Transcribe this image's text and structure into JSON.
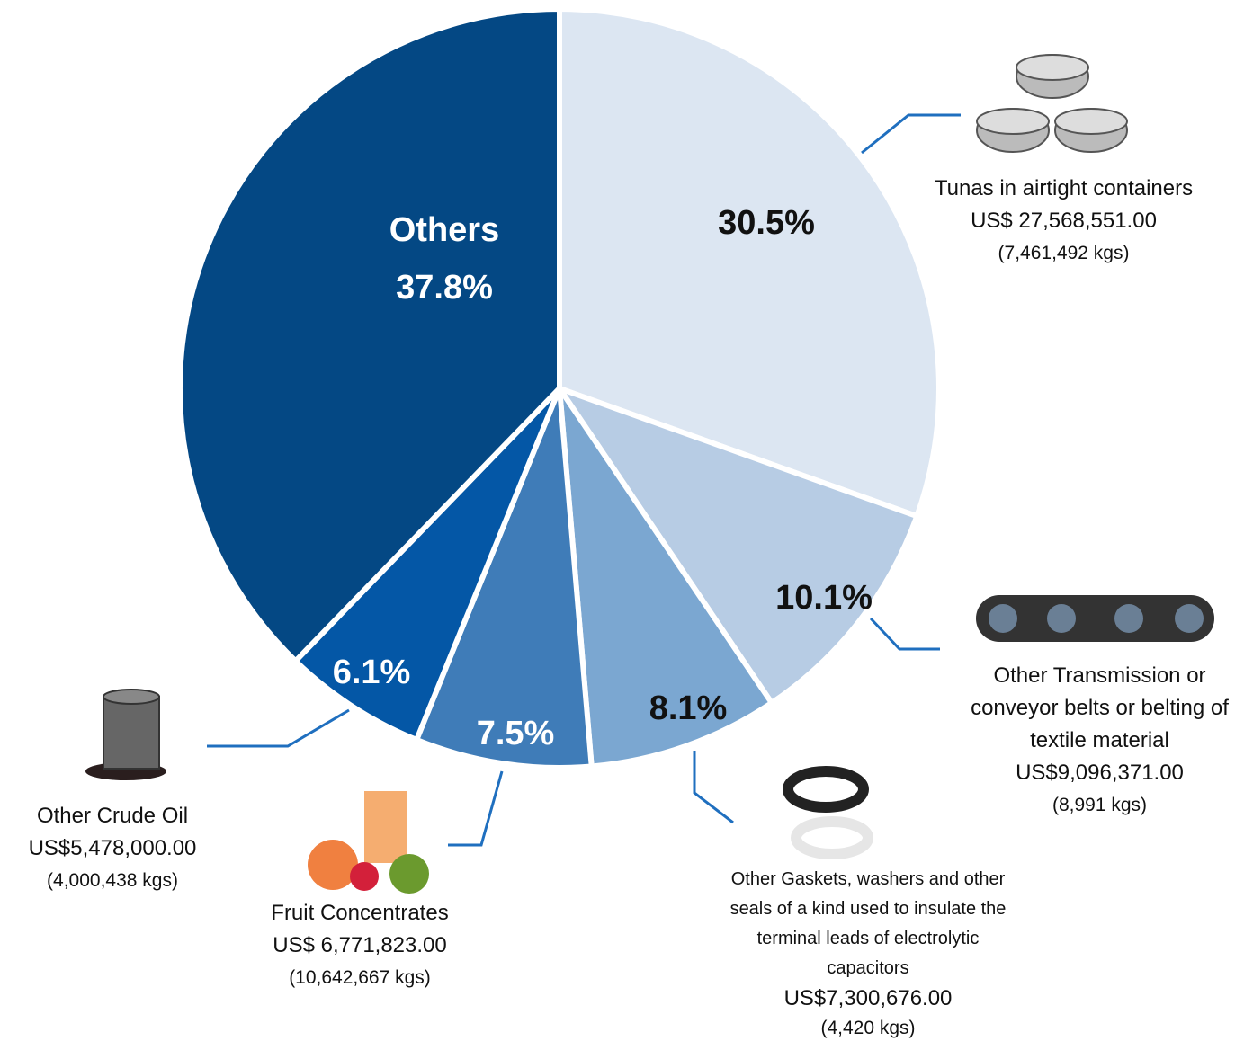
{
  "chart_data": {
    "type": "pie",
    "categories": [
      "Tunas in airtight containers",
      "Other Transmission or conveyor belts or belting of textile material",
      "Other Gaskets, washers and other seals of a kind used to insulate the terminal leads of electrolytic capacitors",
      "Fruit Concentrates",
      "Other Crude Oil",
      "Others"
    ],
    "values": [
      30.5,
      10.1,
      8.1,
      7.5,
      6.1,
      37.8
    ],
    "value_labels": [
      "30.5%",
      "10.1%",
      "8.1%",
      "7.5%",
      "6.1%",
      "37.8%"
    ],
    "colors": [
      "#dce6f2",
      "#b7cce4",
      "#7ba7d1",
      "#3f7cb8",
      "#0457a6",
      "#044884"
    ],
    "amounts": [
      "US$ 27,568,551.00",
      "US$9,096,371.00",
      "US$7,300,676.00",
      "US$ 6,771,823.00",
      "US$5,478,000.00",
      null
    ],
    "weights": [
      "(7,461,492 kgs)",
      "(8,991 kgs)",
      "(4,420 kgs)",
      "(10,642,667 kgs)",
      "(4,000,438 kgs)",
      null
    ]
  }
}
